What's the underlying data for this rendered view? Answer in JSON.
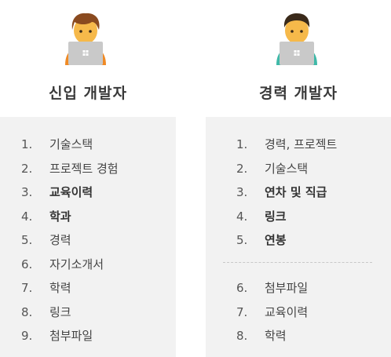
{
  "junior": {
    "title": "신입 개발자",
    "avatar_icon": "junior-developer-with-laptop-icon",
    "items": [
      {
        "num": "1.",
        "label": "기술스택",
        "bold": false
      },
      {
        "num": "2.",
        "label": "프로젝트 경험",
        "bold": false
      },
      {
        "num": "3.",
        "label": "교육이력",
        "bold": true
      },
      {
        "num": "4.",
        "label": "학과",
        "bold": true
      },
      {
        "num": "5.",
        "label": "경력",
        "bold": false
      },
      {
        "num": "6.",
        "label": "자기소개서",
        "bold": false
      },
      {
        "num": "7.",
        "label": "학력",
        "bold": false
      },
      {
        "num": "8.",
        "label": "링크",
        "bold": false
      },
      {
        "num": "9.",
        "label": "첨부파일",
        "bold": false
      }
    ]
  },
  "senior": {
    "title": "경력 개발자",
    "avatar_icon": "experienced-developer-with-laptop-icon",
    "primary_items": [
      {
        "num": "1.",
        "label": "경력, 프로젝트",
        "bold": false
      },
      {
        "num": "2.",
        "label": "기술스택",
        "bold": false
      },
      {
        "num": "3.",
        "label": "연차 및 직급",
        "bold": true
      },
      {
        "num": "4.",
        "label": "링크",
        "bold": true
      },
      {
        "num": "5.",
        "label": "연봉",
        "bold": true
      }
    ],
    "secondary_items": [
      {
        "num": "6.",
        "label": "첨부파일",
        "bold": false
      },
      {
        "num": "7.",
        "label": "교육이력",
        "bold": false
      },
      {
        "num": "8.",
        "label": "학력",
        "bold": false
      }
    ]
  },
  "colors": {
    "panel_bg": "#f2f2f2",
    "hair_brown": "#8a4a1f",
    "hair_dark": "#3a2a1a",
    "skin": "#f6b94a",
    "laptop": "#c9c9c9",
    "shirt_orange": "#f08a24",
    "shirt_teal": "#3fb9a8"
  }
}
